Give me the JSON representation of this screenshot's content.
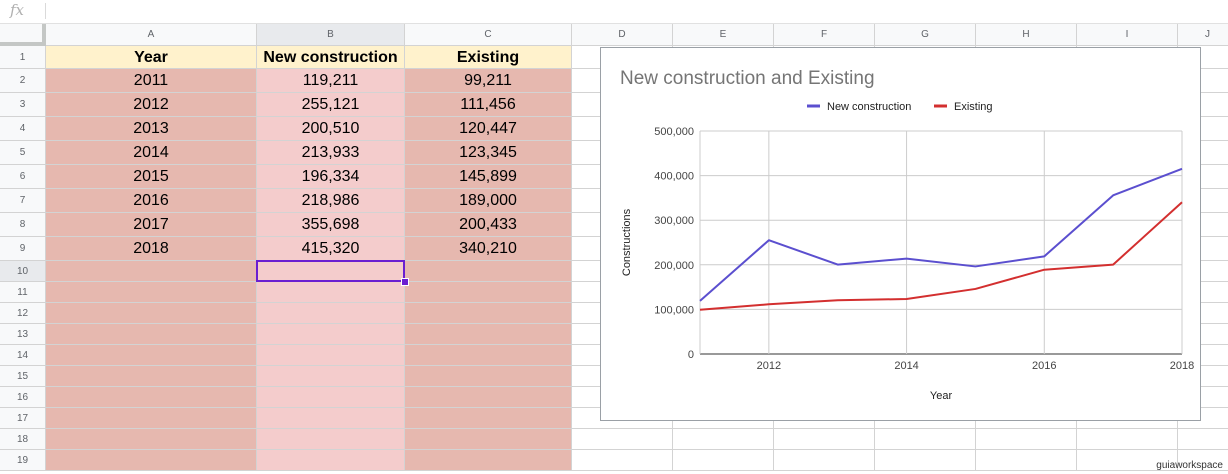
{
  "formula_bar": {
    "fx_label": "fx",
    "value": ""
  },
  "columns": [
    "A",
    "B",
    "C",
    "D",
    "E",
    "F",
    "G",
    "H",
    "I",
    "J"
  ],
  "rows": [
    "1",
    "2",
    "3",
    "4",
    "5",
    "6",
    "7",
    "8",
    "9",
    "10",
    "11",
    "12",
    "13",
    "14",
    "15",
    "16",
    "17",
    "18",
    "19"
  ],
  "table": {
    "headers": [
      "Year",
      "New construction",
      "Existing"
    ],
    "rows": [
      [
        "2011",
        "119,211",
        "99,211"
      ],
      [
        "2012",
        "255,121",
        "111,456"
      ],
      [
        "2013",
        "200,510",
        "120,447"
      ],
      [
        "2014",
        "213,933",
        "123,345"
      ],
      [
        "2015",
        "196,334",
        "145,899"
      ],
      [
        "2016",
        "218,986",
        "189,000"
      ],
      [
        "2017",
        "355,698",
        "200,433"
      ],
      [
        "2018",
        "415,320",
        "340,210"
      ]
    ]
  },
  "selected_cell": "B10",
  "colors": {
    "col_a_fill": "#e6b8af",
    "col_b_fill": "#f4cccc",
    "col_c_fill": "#e6b8af",
    "header_fill": "#fff2cc",
    "selection": "#6a1fd1",
    "new_construction": "#5b4fcf",
    "existing": "#d32f2f"
  },
  "chart_data": {
    "type": "line",
    "title": "New construction and Existing",
    "xlabel": "Year",
    "ylabel": "Constructions",
    "x": [
      2011,
      2012,
      2013,
      2014,
      2015,
      2016,
      2017,
      2018
    ],
    "series": [
      {
        "name": "New construction",
        "values": [
          119211,
          255121,
          200510,
          213933,
          196334,
          218986,
          355698,
          415320
        ]
      },
      {
        "name": "Existing",
        "values": [
          99211,
          111456,
          120447,
          123345,
          145899,
          189000,
          200433,
          340210
        ]
      }
    ],
    "xlim": [
      2011,
      2018
    ],
    "ylim": [
      0,
      500000
    ],
    "x_ticks": [
      "2012",
      "2014",
      "2016",
      "2018"
    ],
    "y_ticks": [
      "0",
      "100,000",
      "200,000",
      "300,000",
      "400,000",
      "500,000"
    ],
    "legend_position": "top",
    "grid": true
  },
  "watermark": "guiaworkspace"
}
